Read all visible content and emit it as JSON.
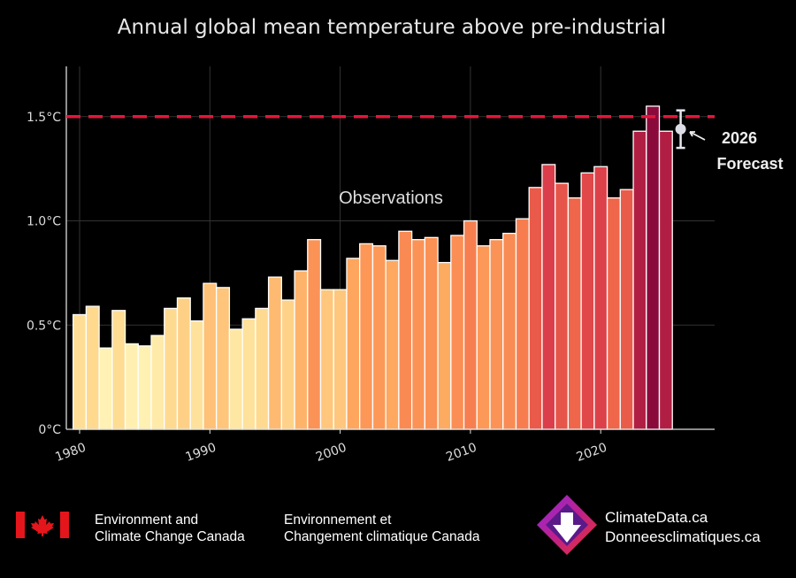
{
  "chart_data": {
    "type": "bar",
    "title": "Annual global mean temperature above pre-industrial",
    "xlabel": "",
    "ylabel": "",
    "x": [
      1980,
      1981,
      1982,
      1983,
      1984,
      1985,
      1986,
      1987,
      1988,
      1989,
      1990,
      1991,
      1992,
      1993,
      1994,
      1995,
      1996,
      1997,
      1998,
      1999,
      2000,
      2001,
      2002,
      2003,
      2004,
      2005,
      2006,
      2007,
      2008,
      2009,
      2010,
      2011,
      2012,
      2013,
      2014,
      2015,
      2016,
      2017,
      2018,
      2019,
      2020,
      2021,
      2022,
      2023,
      2024,
      2025
    ],
    "values": [
      0.55,
      0.59,
      0.39,
      0.57,
      0.41,
      0.4,
      0.45,
      0.58,
      0.63,
      0.52,
      0.7,
      0.68,
      0.48,
      0.53,
      0.58,
      0.73,
      0.62,
      0.76,
      0.91,
      0.67,
      0.67,
      0.82,
      0.89,
      0.88,
      0.81,
      0.95,
      0.91,
      0.92,
      0.8,
      0.93,
      1.0,
      0.88,
      0.91,
      0.94,
      1.01,
      1.16,
      1.27,
      1.18,
      1.11,
      1.23,
      1.26,
      1.11,
      1.15,
      1.43,
      1.55,
      1.43
    ],
    "xlim": [
      1979.5,
      2029
    ],
    "ylim": [
      0,
      1.75
    ],
    "x_ticks": [
      1980,
      1990,
      2000,
      2010,
      2020
    ],
    "x_tick_labels": [
      "1980",
      "1990",
      "2000",
      "2010",
      "2020"
    ],
    "y_ticks": [
      0,
      0.5,
      1.0,
      1.5
    ],
    "y_tick_labels": [
      "0°C",
      "0.5°C",
      "1.0°C",
      "1.5°C"
    ],
    "grid": true,
    "threshold": {
      "value": 1.5,
      "color": "#e4163a",
      "style": "dashed"
    },
    "forecast": {
      "year": 2026,
      "value": 1.44,
      "low": 1.35,
      "high": 1.53,
      "label_line1": "2026",
      "label_line2": "Forecast"
    },
    "annotation": "Observations",
    "colormap": [
      "#fff7bc",
      "#fed98e",
      "#fea45c",
      "#f4704a",
      "#d6344a",
      "#8a0a3c"
    ]
  },
  "footer": {
    "eccc_en_line1": "Environment and",
    "eccc_en_line2": "Climate Change Canada",
    "eccc_fr_line1": "Environnement et",
    "eccc_fr_line2": "Changement climatique Canada",
    "cd_line1": "ClimateData.ca",
    "cd_line2": "Donneesclimatiques.ca"
  }
}
